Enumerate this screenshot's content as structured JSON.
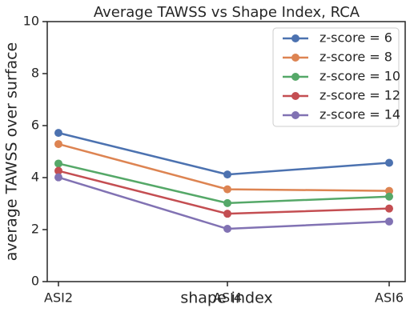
{
  "chart_data": {
    "type": "line",
    "title": "Average TAWSS vs Shape Index, RCA",
    "xlabel": "shape index",
    "ylabel": "average TAWSS over surface",
    "categories": [
      "ASI2",
      "ASI4",
      "ASI6"
    ],
    "ylim": [
      0,
      10
    ],
    "yticks": [
      0,
      2,
      4,
      6,
      8,
      10
    ],
    "grid": false,
    "legend_position": "top-right",
    "series": [
      {
        "name": "z-score = 6",
        "color": "#4c72b0",
        "values": [
          5.72,
          4.12,
          4.57
        ]
      },
      {
        "name": "z-score = 8",
        "color": "#dd8452",
        "values": [
          5.29,
          3.55,
          3.49
        ]
      },
      {
        "name": "z-score = 10",
        "color": "#55a868",
        "values": [
          4.54,
          3.02,
          3.27
        ]
      },
      {
        "name": "z-score = 12",
        "color": "#c44e52",
        "values": [
          4.26,
          2.61,
          2.81
        ]
      },
      {
        "name": "z-score = 14",
        "color": "#8172b3",
        "values": [
          4.01,
          2.03,
          2.31
        ]
      }
    ]
  }
}
